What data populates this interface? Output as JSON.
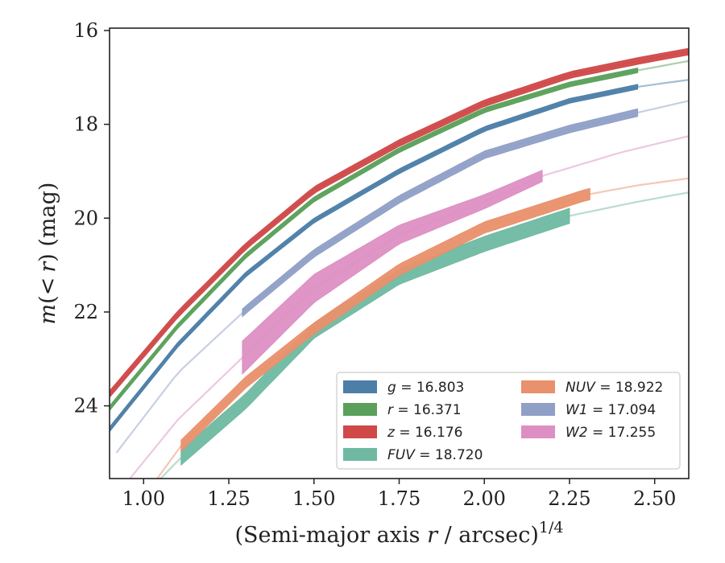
{
  "chart_data": {
    "type": "line",
    "xlabel": "(Semi-major axis r / arcsec)^(1/4)",
    "xlabel_parts": {
      "pre": "(Semi-major axis ",
      "var": "r",
      "mid": " / arcsec)",
      "sup": "1/4"
    },
    "ylabel": "m(<r) (mag)",
    "ylabel_parts": {
      "m": "m",
      "paren_open": "(",
      "lt": "<",
      "r": "r",
      "paren_close": ")",
      "unit": " (mag)"
    },
    "xlim": [
      0.9,
      2.6
    ],
    "ylim": [
      25.55,
      15.95
    ],
    "y_inverted": true,
    "xticks": [
      1.0,
      1.25,
      1.5,
      1.75,
      2.0,
      2.25,
      2.5
    ],
    "xtick_labels": [
      "1.00",
      "1.25",
      "1.50",
      "1.75",
      "2.00",
      "2.25",
      "2.50"
    ],
    "yticks": [
      16,
      18,
      20,
      22,
      24
    ],
    "ytick_labels": [
      "16",
      "18",
      "20",
      "22",
      "24"
    ],
    "grid": false,
    "legend_placement": "lower-right",
    "series": [
      {
        "name": "g = 16.803",
        "band": "g",
        "value": "16.803",
        "color": "#4c7ea8",
        "model": [
          [
            0.9,
            24.5
          ],
          [
            1.1,
            22.7
          ],
          [
            1.3,
            21.2
          ],
          [
            1.5,
            20.05
          ],
          [
            1.75,
            19.0
          ],
          [
            2.0,
            18.1
          ],
          [
            2.25,
            17.5
          ],
          [
            2.45,
            17.2
          ],
          [
            2.6,
            17.05
          ]
        ],
        "band_x": [
          0.9,
          2.45
        ],
        "band_halfwidth": 0.05
      },
      {
        "name": "r = 16.371",
        "band": "r",
        "value": "16.371",
        "color": "#5aa05a",
        "model": [
          [
            0.9,
            24.05
          ],
          [
            1.1,
            22.3
          ],
          [
            1.3,
            20.8
          ],
          [
            1.5,
            19.6
          ],
          [
            1.75,
            18.55
          ],
          [
            2.0,
            17.7
          ],
          [
            2.25,
            17.15
          ],
          [
            2.45,
            16.85
          ],
          [
            2.6,
            16.65
          ]
        ],
        "band_x": [
          0.9,
          2.45
        ],
        "band_halfwidth": 0.05
      },
      {
        "name": "z = 16.176",
        "band": "z",
        "value": "16.176",
        "color": "#d04848",
        "model": [
          [
            0.9,
            23.75
          ],
          [
            1.1,
            22.05
          ],
          [
            1.3,
            20.6
          ],
          [
            1.5,
            19.4
          ],
          [
            1.75,
            18.4
          ],
          [
            2.0,
            17.55
          ],
          [
            2.25,
            16.95
          ],
          [
            2.45,
            16.65
          ],
          [
            2.6,
            16.45
          ]
        ],
        "band_x": [
          0.9,
          2.6
        ],
        "band_halfwidth": 0.07
      },
      {
        "name": "FUV = 18.720",
        "band": "FUV",
        "value": "18.720",
        "color": "#6fb9a2",
        "model": [
          [
            1.05,
            25.55
          ],
          [
            1.11,
            25.1
          ],
          [
            1.3,
            23.9
          ],
          [
            1.5,
            22.4
          ],
          [
            1.75,
            21.25
          ],
          [
            2.0,
            20.55
          ],
          [
            2.25,
            19.95
          ],
          [
            2.45,
            19.65
          ],
          [
            2.6,
            19.45
          ]
        ],
        "band_x": [
          1.11,
          2.25
        ],
        "band_halfwidth": 0.16
      },
      {
        "name": "NUV = 18.922",
        "band": "NUV",
        "value": "18.922",
        "color": "#e9906c",
        "model": [
          [
            1.04,
            25.55
          ],
          [
            1.11,
            24.85
          ],
          [
            1.3,
            23.5
          ],
          [
            1.5,
            22.35
          ],
          [
            1.75,
            21.1
          ],
          [
            2.0,
            20.2
          ],
          [
            2.3,
            19.5
          ],
          [
            2.45,
            19.3
          ],
          [
            2.6,
            19.15
          ]
        ],
        "band_x": [
          1.11,
          2.31
        ],
        "band_halfwidth": 0.12
      },
      {
        "name": "W1 = 17.094",
        "band": "W1",
        "value": "17.094",
        "color": "#8f9fc6",
        "model": [
          [
            0.92,
            25.0
          ],
          [
            1.1,
            23.3
          ],
          [
            1.3,
            21.95
          ],
          [
            1.5,
            20.75
          ],
          [
            1.75,
            19.6
          ],
          [
            2.0,
            18.65
          ],
          [
            2.25,
            18.1
          ],
          [
            2.45,
            17.75
          ],
          [
            2.6,
            17.5
          ]
        ],
        "band_x": [
          1.29,
          2.45
        ],
        "band_halfwidth": 0.08
      },
      {
        "name": "W2 = 17.255",
        "band": "W2",
        "value": "17.255",
        "color": "#dd8fc3",
        "model": [
          [
            0.96,
            25.55
          ],
          [
            1.1,
            24.3
          ],
          [
            1.3,
            22.9
          ],
          [
            1.5,
            21.5
          ],
          [
            1.75,
            20.35
          ],
          [
            2.0,
            19.65
          ],
          [
            2.17,
            19.1
          ],
          [
            2.4,
            18.6
          ],
          [
            2.6,
            18.25
          ]
        ],
        "band_x": [
          1.29,
          2.17
        ],
        "band_halfwidth": [
          [
            1.29,
            0.35
          ],
          [
            1.5,
            0.3
          ],
          [
            1.75,
            0.2
          ],
          [
            2.0,
            0.15
          ],
          [
            2.17,
            0.12
          ]
        ]
      }
    ]
  }
}
